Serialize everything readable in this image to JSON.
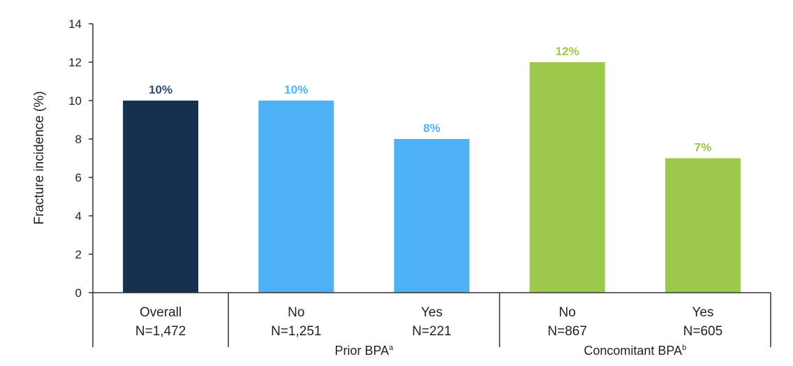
{
  "chart_data": {
    "type": "bar",
    "ylabel": "Fracture incidence (%)",
    "ylim": [
      0,
      14
    ],
    "yticks": [
      0,
      2,
      4,
      6,
      8,
      10,
      12,
      14
    ],
    "grid": false,
    "legend": "none",
    "categories": [
      {
        "label": "Overall",
        "n": "N=1,472",
        "value": 10,
        "data_label": "10%",
        "color": "#17304f",
        "label_color": "#2f4f74"
      },
      {
        "label": "No",
        "n": "N=1,251",
        "value": 10,
        "data_label": "10%",
        "color": "#4fb1f5",
        "label_color": "#4fb1f5"
      },
      {
        "label": "Yes",
        "n": "N=221",
        "value": 8,
        "data_label": "8%",
        "color": "#4fb1f5",
        "label_color": "#4fb1f5"
      },
      {
        "label": "No",
        "n": "N=867",
        "value": 12,
        "data_label": "12%",
        "color": "#9cc84b",
        "label_color": "#9cc84b"
      },
      {
        "label": "Yes",
        "n": "N=605",
        "value": 7,
        "data_label": "7%",
        "color": "#9cc84b",
        "label_color": "#9cc84b"
      }
    ],
    "groups": [
      {
        "label": "Prior BPA",
        "superscript": "a",
        "members": [
          1,
          2
        ]
      },
      {
        "label": "Concomitant BPA",
        "superscript": "b",
        "members": [
          3,
          4
        ]
      }
    ]
  }
}
